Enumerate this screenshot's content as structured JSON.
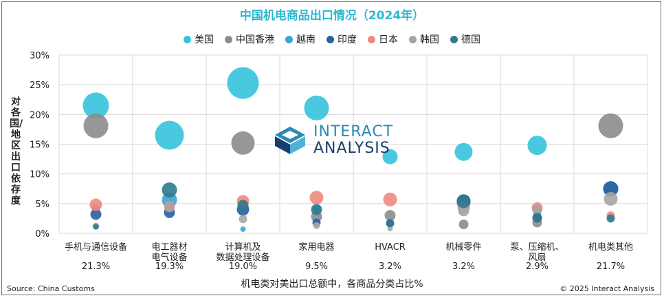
{
  "title": "中国机电商品出口情况（2024年）",
  "y_axis_label": "对各国/地区出口依存度",
  "x_axis_label": "机电类对美出口总额中，各商品分类占比%",
  "source": "Source: China Customs",
  "copyright": "© 2025 Interact Analysis",
  "logo": {
    "line1": "INTERACT",
    "line2": "ANALYSIS"
  },
  "colors": {
    "美国": "#35c3dc",
    "中国香港": "#8c8c8c",
    "越南": "#3aa5d0",
    "印度": "#2a5f9e",
    "日本": "#ef8a7e",
    "韩国": "#a5a5a5",
    "德国": "#2f7a8f"
  },
  "chart_data": {
    "type": "scatter",
    "title": "中国机电商品出口情况（2024年）",
    "ylabel": "对各国/地区出口依存度",
    "xlabel": "机电类对美出口总额中，各商品分类占比%",
    "ylim": [
      0,
      30
    ],
    "yticks": [
      "0%",
      "5%",
      "10%",
      "15%",
      "20%",
      "25%",
      "30%"
    ],
    "grid": true,
    "legend_position": "top",
    "categories": [
      {
        "name": "手机与通信设备",
        "share": "21.3%"
      },
      {
        "name": "电工器材\n电气设备",
        "share": "19.3%"
      },
      {
        "name": "计算机及\n数据处理设备",
        "share": "19.0%"
      },
      {
        "name": "家用电器",
        "share": "9.5%"
      },
      {
        "name": "HVACR",
        "share": "3.2%"
      },
      {
        "name": "机械零件",
        "share": "3.2%"
      },
      {
        "name": "泵、压缩机、\n风扇",
        "share": "2.9%"
      },
      {
        "name": "机电类其他",
        "share": "21.7%"
      }
    ],
    "series": [
      {
        "name": "美国",
        "values": [
          21.5,
          16.5,
          25.3,
          21.1,
          12.9,
          13.7,
          14.8,
          null
        ]
      },
      {
        "name": "中国香港",
        "values": [
          18.1,
          null,
          15.2,
          2.8,
          3.0,
          1.5,
          1.8,
          18.1
        ]
      },
      {
        "name": "越南",
        "values": [
          4.3,
          5.6,
          0.7,
          4.0,
          1.5,
          5.2,
          3.5,
          7.5
        ]
      },
      {
        "name": "印度",
        "values": [
          3.2,
          3.5,
          4.0,
          1.8,
          1.7,
          5.4,
          2.6,
          7.5
        ]
      },
      {
        "name": "日本",
        "values": [
          4.8,
          4.5,
          5.4,
          6.0,
          5.7,
          4.4,
          4.3,
          3.0
        ]
      },
      {
        "name": "韩国",
        "values": [
          1.2,
          4.4,
          2.4,
          1.3,
          0.8,
          3.8,
          4.0,
          5.8
        ]
      },
      {
        "name": "德国",
        "values": [
          1.1,
          7.3,
          4.7,
          4.0,
          1.6,
          5.4,
          2.6,
          2.5
        ]
      }
    ],
    "bubble_sizes": [
      [
        19,
        21,
        23,
        18,
        11,
        13,
        14,
        null
      ],
      [
        18,
        null,
        17,
        8,
        8,
        7,
        7,
        18
      ],
      [
        6,
        11,
        4,
        6,
        4,
        10,
        6,
        11
      ],
      [
        8,
        8,
        9,
        6,
        6,
        10,
        7,
        11
      ],
      [
        9,
        8,
        9,
        10,
        10,
        9,
        8,
        6
      ],
      [
        5,
        7,
        6,
        5,
        4,
        8,
        7,
        10
      ],
      [
        4,
        11,
        8,
        8,
        5,
        10,
        7,
        6
      ]
    ]
  }
}
